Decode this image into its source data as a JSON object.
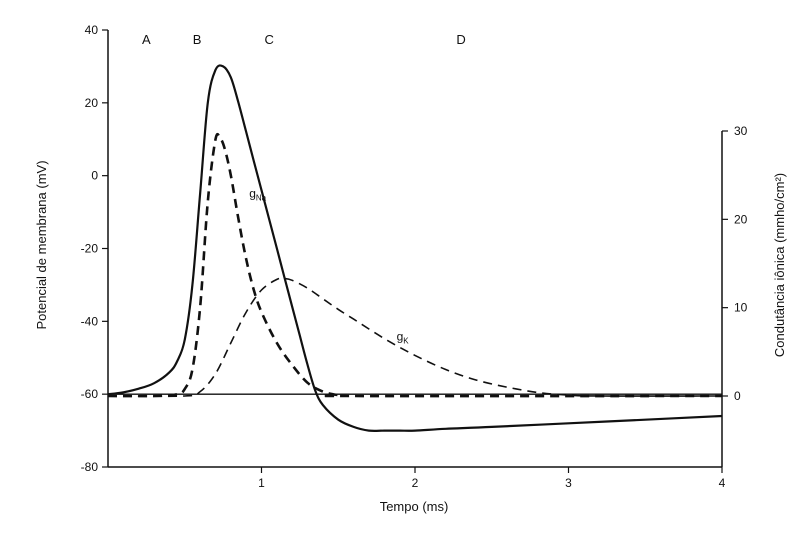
{
  "chart_data": {
    "type": "line",
    "xlabel": "Tempo (ms)",
    "ylabel_left": "Potencial de membrana (mV)",
    "ylabel_right": "Condutância iônica (mmho/cm²)",
    "xlim": [
      0,
      4
    ],
    "ylim_left": [
      -80,
      40
    ],
    "ylim_right": [
      -8,
      30
    ],
    "x_ticks": [
      {
        "value": 1,
        "label": "1"
      },
      {
        "value": 2,
        "label": "2"
      },
      {
        "value": 3,
        "label": "3"
      },
      {
        "value": 4,
        "label": "4"
      }
    ],
    "y_left_ticks": [
      {
        "value": 40,
        "label": "40"
      },
      {
        "value": 20,
        "label": "20"
      },
      {
        "value": 0,
        "label": "0"
      },
      {
        "value": -20,
        "label": "-20"
      },
      {
        "value": -40,
        "label": "-40"
      },
      {
        "value": -60,
        "label": "-60"
      },
      {
        "value": -80,
        "label": "-80"
      }
    ],
    "y_right_ticks": [
      {
        "value": 30,
        "label": "30"
      },
      {
        "value": 20,
        "label": "20"
      },
      {
        "value": 10,
        "label": "10"
      },
      {
        "value": 0,
        "label": "0"
      }
    ],
    "baseline_mv": -60,
    "phase_labels": [
      {
        "text": "A",
        "x": 0.25
      },
      {
        "text": "B",
        "x": 0.58
      },
      {
        "text": "C",
        "x": 1.05
      },
      {
        "text": "D",
        "x": 2.3
      }
    ],
    "series": [
      {
        "name": "Potencial de membrana",
        "axis": "left",
        "style": "solid",
        "x": [
          0,
          0.1,
          0.2,
          0.3,
          0.4,
          0.45,
          0.5,
          0.55,
          0.6,
          0.65,
          0.7,
          0.75,
          0.8,
          0.85,
          0.9,
          0.95,
          1.0,
          1.05,
          1.1,
          1.15,
          1.2,
          1.25,
          1.3,
          1.35,
          1.4,
          1.5,
          1.6,
          1.7,
          1.8,
          1.9,
          2.0,
          2.2,
          2.5,
          3.0,
          3.5,
          4.0
        ],
        "values": [
          -60,
          -59.5,
          -58.5,
          -57,
          -54,
          -51,
          -45,
          -30,
          -5,
          20,
          29,
          30,
          27,
          20,
          12,
          4,
          -4,
          -12,
          -20,
          -28,
          -36,
          -44,
          -52,
          -59,
          -63,
          -67,
          -69,
          -70,
          -70,
          -70,
          -70,
          -69.5,
          -69,
          -68,
          -67,
          -66
        ]
      },
      {
        "name": "g",
        "subscript": "Na",
        "axis": "right",
        "style": "dashed-bold",
        "label_at": {
          "x": 0.92,
          "y": 22.5
        },
        "x": [
          0,
          0.3,
          0.45,
          0.5,
          0.55,
          0.6,
          0.65,
          0.7,
          0.73,
          0.76,
          0.8,
          0.85,
          0.9,
          0.95,
          1.0,
          1.1,
          1.2,
          1.3,
          1.4,
          1.5,
          1.6,
          4.0
        ],
        "values": [
          0,
          0,
          0.2,
          0.8,
          3,
          10,
          22,
          29,
          29.2,
          28,
          25,
          20,
          15.5,
          12,
          9.5,
          6,
          3.5,
          1.5,
          0.5,
          0.1,
          0,
          0
        ]
      },
      {
        "name": "g",
        "subscript": "K",
        "axis": "right",
        "style": "dashed",
        "label_at": {
          "x": 1.88,
          "y": 6.3
        },
        "x": [
          0,
          0.5,
          0.6,
          0.7,
          0.8,
          0.9,
          1.0,
          1.1,
          1.15,
          1.2,
          1.3,
          1.4,
          1.5,
          1.6,
          1.8,
          2.0,
          2.2,
          2.4,
          2.6,
          2.8,
          3.0,
          3.2,
          4.0
        ],
        "values": [
          0,
          0,
          0.5,
          2.5,
          6,
          9.5,
          12,
          13.2,
          13.3,
          13.1,
          12.2,
          11,
          9.8,
          8.7,
          6.5,
          4.6,
          3,
          1.8,
          1,
          0.4,
          0.1,
          0,
          0
        ]
      }
    ]
  }
}
